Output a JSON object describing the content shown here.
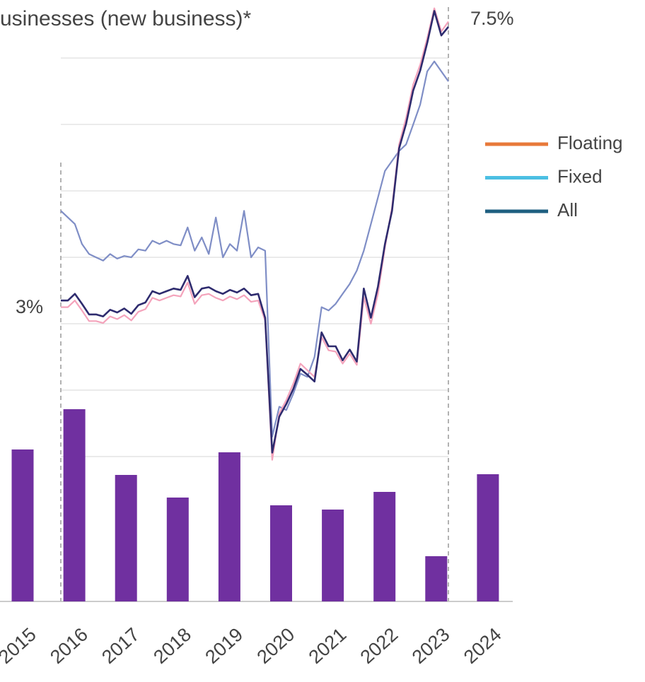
{
  "chart_data": [
    {
      "type": "line",
      "title": "usinesses (new business)*",
      "annotations": [
        "7.5%",
        "3%"
      ],
      "ylim": [
        0,
        7.8
      ],
      "yticks": [
        1,
        2,
        3,
        4,
        5,
        6,
        7
      ],
      "grid": true,
      "series": [
        {
          "name": "Floating",
          "color": "#f4a3bb",
          "legend_color": "#e8793a",
          "values": [
            3.25,
            3.25,
            3.35,
            3.2,
            3.04,
            3.04,
            3.01,
            3.11,
            3.07,
            3.13,
            3.05,
            3.18,
            3.22,
            3.39,
            3.35,
            3.39,
            3.43,
            3.41,
            3.62,
            3.3,
            3.43,
            3.45,
            3.39,
            3.35,
            3.41,
            3.37,
            3.43,
            3.33,
            3.35,
            3.05,
            0.95,
            1.65,
            1.85,
            2.1,
            2.4,
            2.3,
            2.2,
            2.8,
            2.6,
            2.58,
            2.4,
            2.55,
            2.38,
            3.4,
            3.0,
            3.45,
            4.15,
            4.75,
            5.7,
            6.1,
            6.6,
            6.9,
            7.3,
            7.75,
            7.4,
            7.55
          ]
        },
        {
          "name": "Fixed",
          "color": "#7f8ec6",
          "legend_color": "#4cbfe3",
          "values": [
            4.7,
            4.6,
            4.5,
            4.2,
            4.05,
            4.0,
            3.95,
            4.05,
            3.98,
            4.02,
            4.0,
            4.12,
            4.1,
            4.25,
            4.2,
            4.25,
            4.2,
            4.18,
            4.45,
            4.1,
            4.3,
            4.05,
            4.6,
            4.0,
            4.2,
            4.1,
            4.7,
            4.0,
            4.15,
            4.1,
            1.3,
            1.75,
            1.7,
            1.95,
            2.25,
            2.2,
            2.5,
            3.25,
            3.2,
            3.3,
            3.45,
            3.6,
            3.8,
            4.1,
            4.5,
            4.9,
            5.3,
            5.45,
            5.6,
            5.7,
            6.0,
            6.3,
            6.8,
            6.95,
            6.8,
            6.65
          ]
        },
        {
          "name": "All",
          "color": "#2e2b6e",
          "legend_color": "#1e5f80",
          "values": [
            3.35,
            3.35,
            3.45,
            3.3,
            3.14,
            3.14,
            3.11,
            3.21,
            3.17,
            3.23,
            3.15,
            3.28,
            3.32,
            3.49,
            3.45,
            3.49,
            3.53,
            3.51,
            3.72,
            3.4,
            3.53,
            3.55,
            3.49,
            3.45,
            3.51,
            3.47,
            3.53,
            3.43,
            3.45,
            3.09,
            1.06,
            1.6,
            1.79,
            2.02,
            2.32,
            2.23,
            2.13,
            2.87,
            2.66,
            2.66,
            2.45,
            2.61,
            2.43,
            3.53,
            3.09,
            3.56,
            4.2,
            4.7,
            5.64,
            6.01,
            6.51,
            6.81,
            7.23,
            7.71,
            7.34,
            7.47
          ]
        }
      ]
    },
    {
      "type": "bar",
      "categories": [
        "2015",
        "2016",
        "2017",
        "2018",
        "2019",
        "2020",
        "2021",
        "2022",
        "2023",
        "2024"
      ],
      "values": [
        21.5,
        27.2,
        17.9,
        14.7,
        21.1,
        13.6,
        13.0,
        15.5,
        6.4,
        18.0
      ],
      "color": "#7030a0",
      "ylim": [
        0,
        30
      ]
    }
  ]
}
